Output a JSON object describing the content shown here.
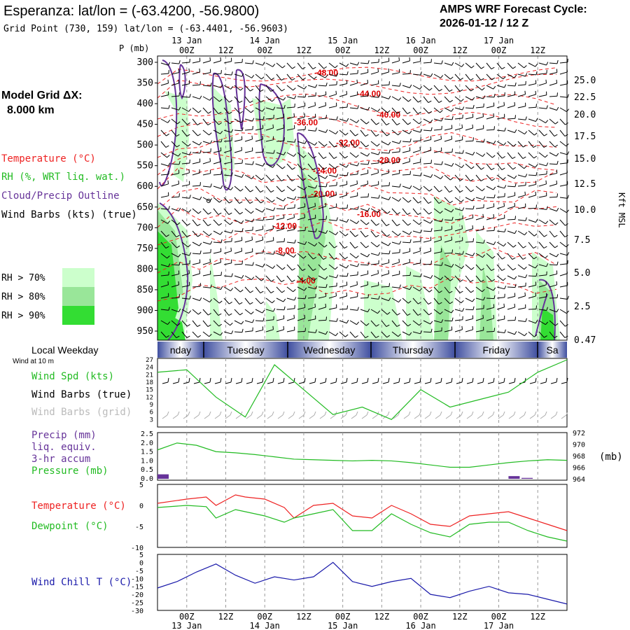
{
  "header": {
    "title": "Esperanza:  lat/lon = (-63.4200, -56.9800)",
    "subtitle": "Grid Point (730, 159) lat/lon = (-63.4401, -56.9603)",
    "cycle_label": "AMPS WRF Forecast Cycle:",
    "cycle_value": "2026-01-12 / 12  Z"
  },
  "sidebar": {
    "grid_label": "Model Grid ΔX:",
    "grid_value": "8.000 km",
    "legend_temperature": "Temperature (°C)",
    "legend_rh": "RH (%, WRT liq. wat.)",
    "legend_cloud": "Cloud/Precip Outline",
    "legend_wind": "Wind Barbs (kts) (true)",
    "rh_levels": [
      "RH > 70%",
      "RH > 80%",
      "RH > 90%"
    ],
    "rh_colors": [
      "#ccffcc",
      "#99e699",
      "#33dd33"
    ]
  },
  "colors": {
    "temperature": "#ee2222",
    "rh": "#22bb22",
    "cloud": "#663399",
    "wind": "#000000",
    "wind_grid": "#aaaaaa",
    "precip": "#663399",
    "pressure": "#22bb22",
    "dewpoint": "#22bb22",
    "windchill": "#1a1aaa"
  },
  "time_axis": {
    "p_label": "P (mb)",
    "top_dates": [
      "13 Jan",
      "14 Jan",
      "15 Jan",
      "16 Jan",
      "17 Jan"
    ],
    "top_hours": [
      "00Z",
      "12Z",
      "00Z",
      "12Z",
      "00Z",
      "12Z",
      "00Z",
      "12Z",
      "00Z",
      "12Z"
    ],
    "bottom_hours": [
      "00Z",
      "12Z",
      "00Z",
      "12Z",
      "00Z",
      "12Z",
      "00Z",
      "12Z",
      "00Z",
      "12Z"
    ],
    "bottom_dates": [
      "13 Jan",
      "14 Jan",
      "15 Jan",
      "16 Jan",
      "17 Jan"
    ]
  },
  "weekday_bar": {
    "label": "Local Weekday",
    "days": [
      "nday",
      "Tuesday",
      "Wednesday",
      "Thursday",
      "Friday",
      "Sa"
    ]
  },
  "chart_data": [
    {
      "type": "heatmap",
      "panel": "cross-section",
      "y_axis_label": "P (mb)",
      "pressure_ticks": [
        300,
        350,
        400,
        450,
        500,
        550,
        600,
        650,
        700,
        750,
        800,
        850,
        900,
        950
      ],
      "height_axis_label": "Kft MSL",
      "height_ticks": [
        "25.0",
        "22.5",
        "20.0",
        "17.5",
        "15.0",
        "12.5",
        "10.0",
        "7.5",
        "5.0",
        "2.5",
        "0.47"
      ],
      "temperature_contour_labels": [
        "-48.00",
        "-44.00",
        "-40.00",
        "-36.00",
        "-32.00",
        "-28.00",
        "-24.00",
        "-20.00",
        "-16.00",
        "-12.00",
        "-8.00",
        "-4.00"
      ],
      "temperature_contour_levels": [
        -48,
        -44,
        -40,
        -36,
        -32,
        -28,
        -24,
        -20,
        -16,
        -12,
        -8,
        -4
      ]
    },
    {
      "type": "line",
      "panel": "wind",
      "label_top": "Wind at 10 m",
      "series_labels": [
        "Wind Spd (kts)",
        "Wind Barbs (true)",
        "Wind Barbs (grid)"
      ],
      "yticks": [
        3,
        6,
        9,
        12,
        15,
        18,
        21,
        24,
        27
      ],
      "ylim": [
        0,
        27
      ],
      "x_hours": [
        -9,
        0,
        9,
        18,
        27,
        36,
        45,
        54,
        63,
        72,
        81,
        90,
        99,
        108,
        117
      ],
      "wind_speed": [
        22,
        23,
        12,
        4,
        25,
        15,
        5,
        8,
        3,
        15,
        8,
        11,
        14,
        22,
        27
      ]
    },
    {
      "type": "line",
      "panel": "precip-pressure",
      "series_labels": [
        "Precip (mm)",
        "liq. equiv.",
        "3-hr accum",
        "Pressure (mb)"
      ],
      "yticks_left": [
        "0.0",
        "0.5",
        "1.0",
        "1.5",
        "2.0",
        "2.5"
      ],
      "yticks_right": [
        964,
        966,
        968,
        970,
        972
      ],
      "right_axis_label": "(mb)",
      "x_hours": [
        -9,
        -3,
        3,
        9,
        15,
        21,
        27,
        33,
        39,
        45,
        51,
        57,
        63,
        69,
        75,
        81,
        87,
        93,
        99,
        105,
        111,
        117
      ],
      "pressure": [
        969,
        970.2,
        969.8,
        968.7,
        968.5,
        968.2,
        967.8,
        967.4,
        967.3,
        967.2,
        967.1,
        967.2,
        967.1,
        966.8,
        966.4,
        966.0,
        966.0,
        966.4,
        966.8,
        967.1,
        967.3,
        967.2
      ],
      "precip_hours": [
        -9,
        99,
        103
      ],
      "precip": [
        0.25,
        0.15,
        0.05
      ]
    },
    {
      "type": "line",
      "panel": "temperature-dewpoint",
      "series_labels": [
        "Temperature (°C)",
        "Dewpoint (°C)"
      ],
      "yticks": [
        5,
        0,
        -5,
        -10
      ],
      "ylim": [
        -10,
        5
      ],
      "x_hours": [
        -9,
        0,
        6,
        9,
        15,
        18,
        24,
        30,
        33,
        39,
        45,
        51,
        57,
        63,
        69,
        75,
        81,
        87,
        93,
        99,
        105,
        111,
        117
      ],
      "temperature": [
        0.5,
        1.5,
        2.0,
        0,
        2.5,
        2,
        1.5,
        -0.5,
        -3,
        0,
        0.5,
        -2.5,
        -3,
        0,
        -2,
        -4.5,
        -5,
        -2.5,
        -2,
        -1.5,
        -3,
        -4.5,
        -6
      ],
      "dewpoint": [
        -0.5,
        0,
        -0.3,
        -3,
        -1,
        -1.5,
        -2.5,
        -4,
        -3,
        -2,
        -1,
        -6,
        -6,
        -2,
        -4.5,
        -6.5,
        -7.5,
        -4.5,
        -4,
        -4,
        -6,
        -7.5,
        -8.5
      ]
    },
    {
      "type": "line",
      "panel": "wind-chill",
      "series_labels": [
        "Wind Chill T (°C)"
      ],
      "yticks": [
        5,
        0,
        -5,
        -10,
        -15,
        -20,
        -25,
        -30
      ],
      "ylim": [
        -30,
        5
      ],
      "x_hours": [
        -9,
        -3,
        3,
        9,
        15,
        21,
        27,
        33,
        39,
        45,
        51,
        57,
        63,
        69,
        75,
        81,
        87,
        93,
        99,
        105,
        111,
        117
      ],
      "wind_chill": [
        -16,
        -12,
        -6,
        -1,
        -8,
        -13,
        -9,
        -11,
        -9,
        0,
        -12,
        -15,
        -12,
        -10,
        -20,
        -22,
        -18,
        -15,
        -19,
        -20,
        -23,
        -26
      ]
    }
  ]
}
